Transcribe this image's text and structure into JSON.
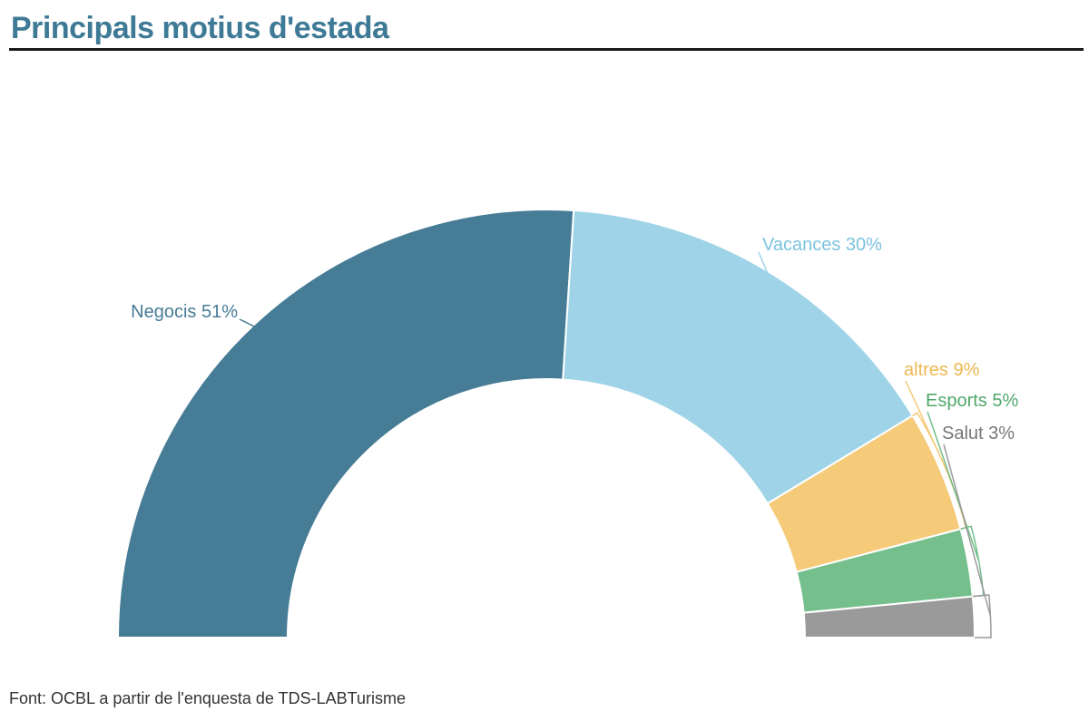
{
  "title": "Principals motius d'estada",
  "source": "Font: OCBL a partir de l'enquesta de TDS-LABTurisme",
  "chart_data": {
    "type": "pie",
    "variant": "half-donut",
    "categories": [
      "Negocis",
      "Vacances",
      "altres",
      "Esports",
      "Salut"
    ],
    "values": [
      51,
      30,
      9,
      5,
      3
    ],
    "labels": [
      "Negocis 51%",
      "Vacances 30%",
      "altres 9%",
      "Esports 5%",
      "Salut 3%"
    ],
    "colors": [
      "#467c96",
      "#9fd4e8",
      "#f5ca79",
      "#74bf8c",
      "#9a9a9a"
    ]
  }
}
